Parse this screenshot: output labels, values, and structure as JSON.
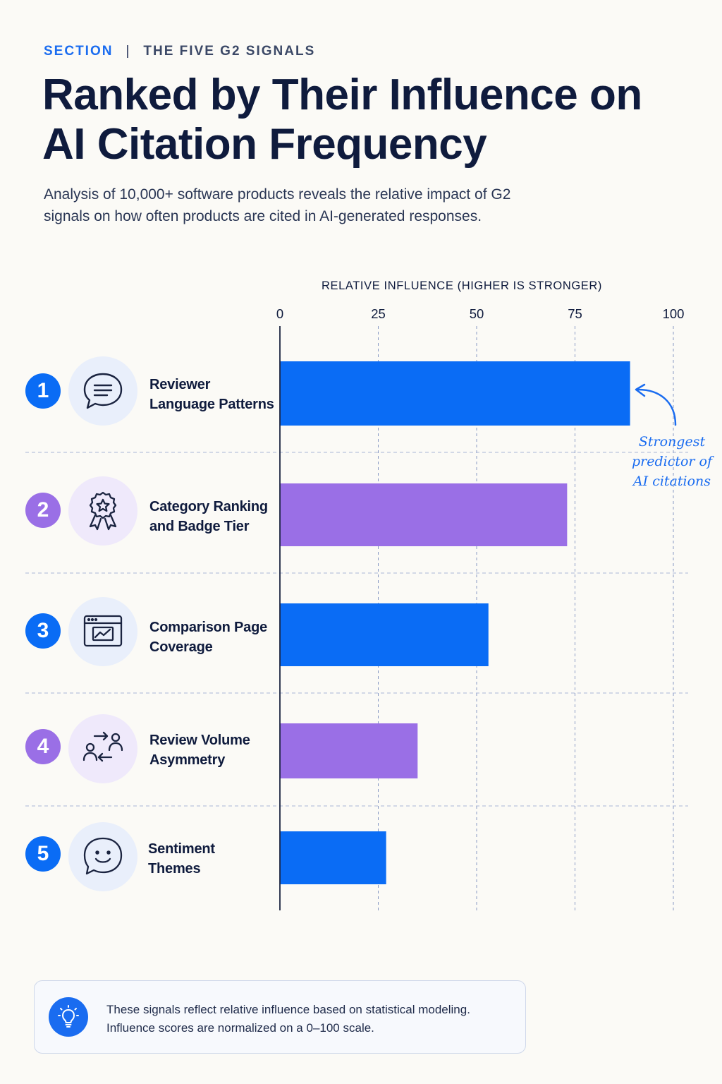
{
  "header": {
    "section": "SECTION",
    "separator": "|",
    "subtitle": "THE FIVE G2 SIGNALS",
    "title": "Ranked by Their Influence on AI Citation Frequency",
    "description": "Analysis of 10,000+ software products reveals the relative impact of G2 signals on how often products are cited in AI-generated responses."
  },
  "colors": {
    "blue": "#0a6cf5",
    "purple": "#9a6fe6",
    "blue_tint": "#e9effb",
    "purple_tint": "#efe9fb",
    "text": "#0f1b3d"
  },
  "chart_data": {
    "type": "bar",
    "orientation": "horizontal",
    "xlabel": "RELATIVE INFLUENCE (HIGHER IS STRONGER)",
    "xlim": [
      0,
      100
    ],
    "ticks": [
      0,
      25,
      50,
      75,
      100
    ],
    "tick_labels": [
      "0",
      "25",
      "50",
      "75",
      "100"
    ],
    "grid": true,
    "categories": [
      "Reviewer Language Patterns",
      "Category Ranking and Badge Tier",
      "Comparison Page Coverage",
      "Review Volume Asymmetry",
      "Sentiment Themes"
    ],
    "ranks": [
      "1",
      "2",
      "3",
      "4",
      "5"
    ],
    "values": [
      89,
      73,
      53,
      35,
      27
    ],
    "bar_colors": [
      "#0a6cf5",
      "#9a6fe6",
      "#0a6cf5",
      "#9a6fe6",
      "#0a6cf5"
    ],
    "icons": [
      "speech-bubble-icon",
      "award-badge-icon",
      "browser-chart-icon",
      "users-exchange-icon",
      "smiley-icon"
    ],
    "annotation": "Strongest predictor of AI citations"
  },
  "rows": [
    {
      "rank": "1",
      "line1": "Reviewer",
      "line2": "Language Patterns",
      "color": "#0a6cf5",
      "tint": "#e9effb"
    },
    {
      "rank": "2",
      "line1": "Category Ranking",
      "line2": "and Badge Tier",
      "color": "#9a6fe6",
      "tint": "#efe9fb"
    },
    {
      "rank": "3",
      "line1": "Comparison Page",
      "line2": "Coverage",
      "color": "#0a6cf5",
      "tint": "#e9effb"
    },
    {
      "rank": "4",
      "line1": "Review Volume",
      "line2": "Asymmetry",
      "color": "#9a6fe6",
      "tint": "#efe9fb"
    },
    {
      "rank": "5",
      "line1": "Sentiment",
      "line2": "Themes",
      "color": "#0a6cf5",
      "tint": "#e9effb"
    }
  ],
  "annotation": {
    "line1": "Strongest",
    "line2": "predictor of",
    "line3": "AI citations"
  },
  "note": {
    "icon": "lightbulb-icon",
    "line1": "These signals reflect relative influence based on statistical modeling.",
    "line2": "Influence scores are normalized on a 0–100 scale."
  }
}
